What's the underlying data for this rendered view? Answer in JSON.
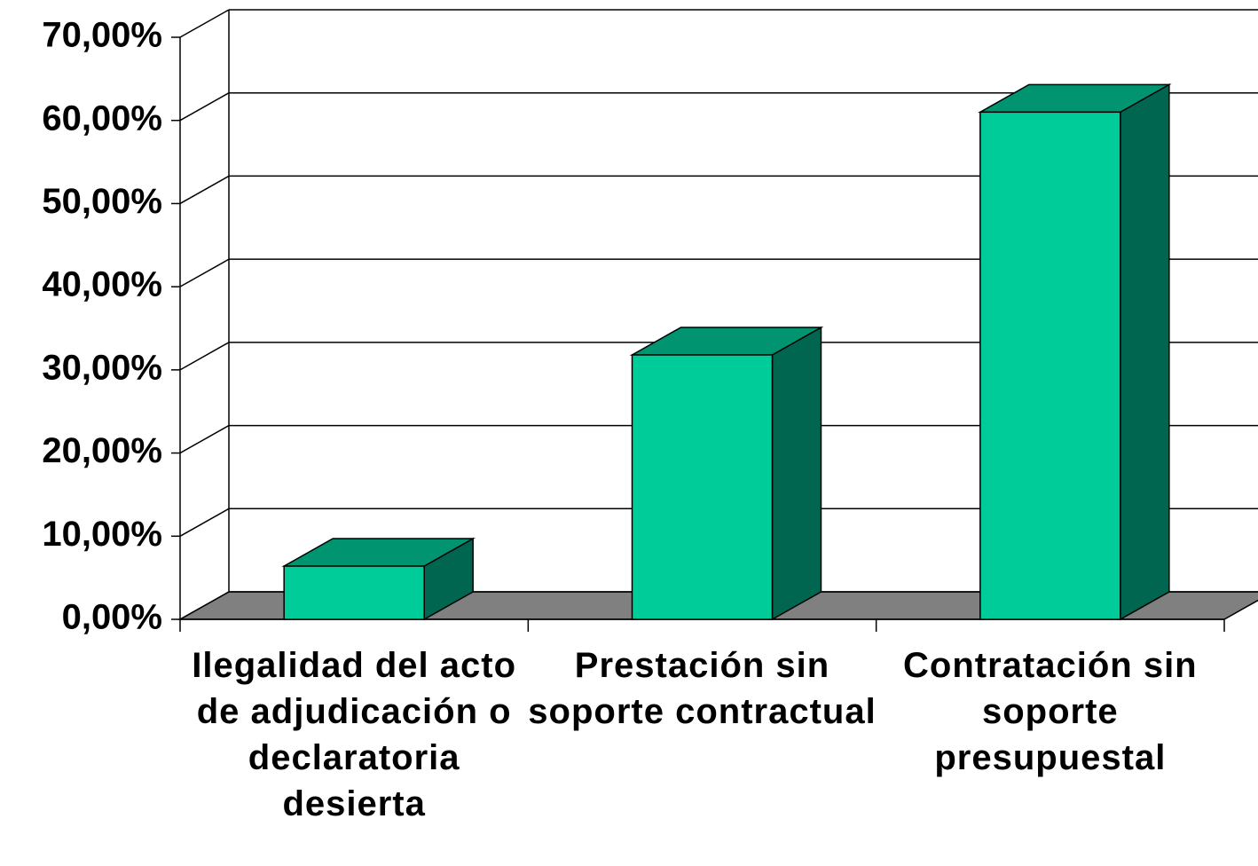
{
  "chart_data": {
    "type": "bar3d",
    "categories": [
      "Ilegalidad del acto de adjudicación o declaratoria desierta",
      "Prestación sin soporte contractual",
      "Contratación sin soporte presupuestal"
    ],
    "values": [
      6.4,
      31.8,
      61.0
    ],
    "colors": {
      "front": "#00cc99",
      "top": "#009570",
      "side": "#006650",
      "floor": "#808080"
    },
    "ylim": [
      0,
      70
    ],
    "yticks": [
      {
        "value": 0,
        "label": "0,00%"
      },
      {
        "value": 10,
        "label": "10,00%"
      },
      {
        "value": 20,
        "label": "20,00%"
      },
      {
        "value": 30,
        "label": "30,00%"
      },
      {
        "value": 40,
        "label": "40,00%"
      },
      {
        "value": 50,
        "label": "50,00%"
      },
      {
        "value": 60,
        "label": "60,00%"
      },
      {
        "value": 70,
        "label": "70,00%"
      }
    ],
    "grid": true
  }
}
